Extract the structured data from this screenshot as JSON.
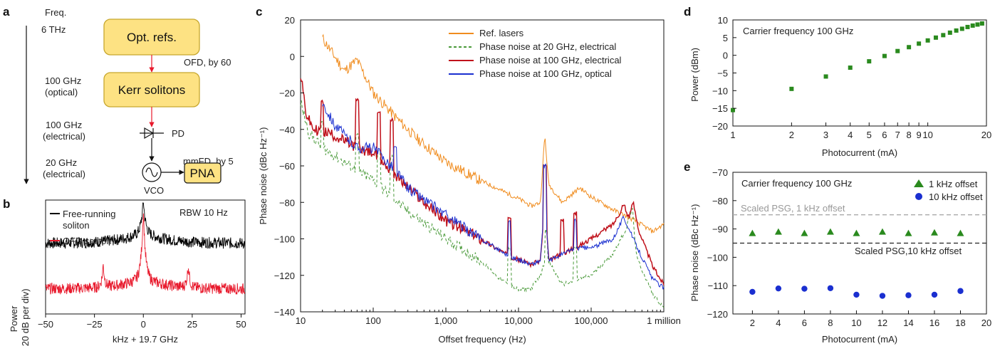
{
  "panels": {
    "a": "a",
    "b": "b",
    "c": "c",
    "d": "d",
    "e": "e"
  },
  "diagram": {
    "freq_header": "Freq.",
    "levels": [
      "6 THz",
      "100 GHz\n(optical)",
      "100 GHz\n(electrical)",
      "20 GHz\n(electrical)"
    ],
    "box_refs": "Opt. refs.",
    "box_kerr": "Kerr solitons",
    "box_pna": "PNA",
    "ofd_label": "OFD, by 60",
    "pd_label": "PD",
    "mmfd_label": "mmFD, by 5",
    "vco_label": "VCO",
    "colors": {
      "box_fill": "#fde283",
      "box_stroke": "#c7a72e",
      "arrow_red": "#e8192c"
    }
  },
  "chart_data": [
    {
      "id": "b",
      "type": "line",
      "xlabel": "kHz + 19.7 GHz",
      "ylabel": [
        "Power",
        "(20 dB per div)"
      ],
      "xlim": [
        -50,
        52
      ],
      "xticks": [
        -50,
        -25,
        0,
        25,
        50
      ],
      "xtick_labels": [
        "−50",
        "−25",
        "0",
        "25",
        "50"
      ],
      "annotation": "RBW 10 Hz",
      "series": [
        {
          "name": "Free-running\nsoliton",
          "color": "#000000",
          "baseline": 0.62,
          "sideband_peaks": []
        },
        {
          "name": "OFD soliton",
          "color": "#e8192c",
          "baseline": 0.22,
          "sideband_peaks": [
            -20.5,
            23
          ]
        }
      ]
    },
    {
      "id": "c",
      "type": "line",
      "xlabel": "Offset frequency (Hz)",
      "ylabel": "Phase noise (dBc Hz⁻¹)",
      "xscale": "log",
      "xlim": [
        10,
        1000000
      ],
      "ylim": [
        -140,
        20
      ],
      "xticks": [
        10,
        100,
        1000,
        10000,
        100000,
        1000000
      ],
      "xtick_labels": [
        "10",
        "100",
        "1,000",
        "10,000",
        "100,000",
        "1 million"
      ],
      "yticks": [
        -140,
        -120,
        -100,
        -80,
        -60,
        -40,
        -20,
        0,
        20
      ],
      "ytick_labels": [
        "−140",
        "−120",
        "−100",
        "−80",
        "−60",
        "−40",
        "−20",
        "0",
        "20"
      ],
      "series": [
        {
          "name": "Ref. lasers",
          "color": "#f08c1e",
          "dash": "",
          "points": [
            [
              20,
              10
            ],
            [
              40,
              -8
            ],
            [
              60,
              -2
            ],
            [
              100,
              -20
            ],
            [
              200,
              -33
            ],
            [
              400,
              -45
            ],
            [
              1000,
              -58
            ],
            [
              3000,
              -68
            ],
            [
              10000,
              -78
            ],
            [
              15000,
              -82
            ],
            [
              20000,
              -80
            ],
            [
              23000,
              -43
            ],
            [
              26000,
              -70
            ],
            [
              40000,
              -80
            ],
            [
              70000,
              -72
            ],
            [
              100000,
              -77
            ],
            [
              200000,
              -84
            ],
            [
              400000,
              -90
            ],
            [
              700000,
              -96
            ],
            [
              1000000,
              -92
            ]
          ],
          "spikes": []
        },
        {
          "name": "Phase noise at 20 GHz, electrical",
          "color": "#4a9a3a",
          "dash": "4,3",
          "points": [
            [
              10,
              -25
            ],
            [
              13,
              -42
            ],
            [
              20,
              -50
            ],
            [
              40,
              -58
            ],
            [
              100,
              -68
            ],
            [
              300,
              -85
            ],
            [
              1000,
              -100
            ],
            [
              3000,
              -112
            ],
            [
              6000,
              -123
            ],
            [
              10000,
              -128
            ],
            [
              15000,
              -127
            ],
            [
              20000,
              -120
            ],
            [
              24000,
              -110
            ],
            [
              40000,
              -125
            ],
            [
              100000,
              -120
            ],
            [
              200000,
              -108
            ],
            [
              300000,
              -95
            ],
            [
              370000,
              -83
            ],
            [
              420000,
              -110
            ],
            [
              700000,
              -130
            ],
            [
              1000000,
              -138
            ]
          ],
          "spikes": [
            [
              20,
              -36
            ],
            [
              60,
              -43
            ],
            [
              120,
              -52
            ],
            [
              180,
              -55
            ],
            [
              7500,
              -105
            ],
            [
              24000,
              -95
            ],
            [
              60000,
              -105
            ]
          ]
        },
        {
          "name": "Phase noise at 100 GHz, electrical",
          "color": "#c0111b",
          "dash": "",
          "points": [
            [
              10,
              -10
            ],
            [
              12,
              -32
            ],
            [
              15,
              -40
            ],
            [
              25,
              -42
            ],
            [
              60,
              -50
            ],
            [
              100,
              -53
            ],
            [
              200,
              -65
            ],
            [
              500,
              -80
            ],
            [
              1000,
              -90
            ],
            [
              3000,
              -100
            ],
            [
              8000,
              -110
            ],
            [
              15000,
              -114
            ],
            [
              20000,
              -112
            ],
            [
              23000,
              -80
            ],
            [
              26000,
              -112
            ],
            [
              40000,
              -108
            ],
            [
              60000,
              -105
            ],
            [
              100000,
              -100
            ],
            [
              200000,
              -92
            ],
            [
              280000,
              -82
            ],
            [
              330000,
              -88
            ],
            [
              380000,
              -80
            ],
            [
              450000,
              -95
            ],
            [
              700000,
              -115
            ],
            [
              1000000,
              -125
            ]
          ],
          "spikes": [
            [
              20,
              -25
            ],
            [
              60,
              -24
            ],
            [
              120,
              -30
            ],
            [
              180,
              -35
            ],
            [
              7500,
              -88
            ],
            [
              23000,
              -60
            ],
            [
              40000,
              -90
            ],
            [
              60000,
              -86
            ],
            [
              280000,
              -82
            ]
          ]
        },
        {
          "name": "Phase noise at 100 GHz, optical",
          "color": "#1a2fd0",
          "dash": "",
          "points": [
            [
              20,
              -25
            ],
            [
              30,
              -38
            ],
            [
              60,
              -50
            ],
            [
              100,
              -50
            ],
            [
              200,
              -62
            ],
            [
              300,
              -72
            ],
            [
              1000,
              -87
            ],
            [
              3000,
              -100
            ],
            [
              8000,
              -110
            ],
            [
              15000,
              -114
            ],
            [
              20000,
              -112
            ],
            [
              23000,
              -78
            ],
            [
              26000,
              -112
            ],
            [
              60000,
              -105
            ],
            [
              100000,
              -105
            ],
            [
              200000,
              -100
            ],
            [
              280000,
              -88
            ],
            [
              400000,
              -102
            ],
            [
              700000,
              -122
            ],
            [
              1000000,
              -127
            ]
          ],
          "spikes": [
            [
              200,
              -50
            ],
            [
              7500,
              -90
            ],
            [
              23000,
              -60
            ],
            [
              60000,
              -90
            ]
          ]
        }
      ]
    },
    {
      "id": "d",
      "type": "scatter",
      "xlabel": "Photocurrent (mA)",
      "ylabel": "Power (dBm)",
      "xscale": "log",
      "xlim": [
        1,
        20
      ],
      "ylim": [
        -20,
        10
      ],
      "yticks": [
        -20,
        -15,
        -10,
        -5,
        0,
        5,
        10
      ],
      "ytick_labels": [
        "−20",
        "−15",
        "−10",
        "−5",
        "0",
        "5",
        "10"
      ],
      "xticks": [
        1,
        2,
        3,
        4,
        5,
        6,
        7,
        8,
        9,
        10,
        20
      ],
      "xtick_labels": [
        "1",
        "2",
        "3",
        "4",
        "5",
        "6",
        "7",
        "8",
        "9",
        "10",
        "20"
      ],
      "annotation": "Carrier frequency 100 GHz",
      "series": [
        {
          "color": "#2a8a1e",
          "x": [
            1,
            2,
            3,
            4,
            5,
            6,
            7,
            8,
            9,
            10,
            11,
            12,
            13,
            14,
            15,
            16,
            17,
            18,
            19
          ],
          "y": [
            -15.5,
            -9.5,
            -6,
            -3.5,
            -1.7,
            -0.2,
            1.2,
            2.3,
            3.3,
            4.2,
            5.0,
            5.7,
            6.4,
            7.0,
            7.5,
            8.0,
            8.4,
            8.7,
            9.0
          ]
        }
      ]
    },
    {
      "id": "e",
      "type": "scatter",
      "xlabel": "Photocurrent (mA)",
      "ylabel": "Phase noise (dBc Hz⁻¹)",
      "xlim": [
        0.5,
        20
      ],
      "ylim": [
        -120,
        -70
      ],
      "yticks": [
        -120,
        -110,
        -100,
        -90,
        -80,
        -70
      ],
      "ytick_labels": [
        "−120",
        "−110",
        "−100",
        "−90",
        "−80",
        "−70"
      ],
      "xticks": [
        2,
        4,
        6,
        8,
        10,
        12,
        14,
        16,
        18,
        20
      ],
      "xtick_labels": [
        "2",
        "4",
        "6",
        "8",
        "10",
        "12",
        "14",
        "16",
        "18",
        "20"
      ],
      "annotation": "Carrier frequency 100 GHz",
      "series": [
        {
          "name": "1 kHz offset",
          "color": "#2a8a1e",
          "marker": "triangle",
          "x": [
            2,
            4,
            6,
            8,
            10,
            12,
            14,
            16,
            18
          ],
          "y": [
            -91.5,
            -91,
            -91.5,
            -91,
            -91.5,
            -91,
            -91.5,
            -91.3,
            -91.5
          ]
        },
        {
          "name": "10 kHz offset",
          "color": "#1a2fd0",
          "marker": "circle",
          "x": [
            2,
            4,
            6,
            8,
            10,
            12,
            14,
            16,
            18
          ],
          "y": [
            -112.2,
            -111,
            -111.1,
            -110.9,
            -113.2,
            -113.6,
            -113.4,
            -113.2,
            -111.9
          ]
        }
      ],
      "reference_lines": [
        {
          "label": "Scaled PSG, 1 kHz offset",
          "y": -85,
          "color": "#aaaaaa"
        },
        {
          "label": "Scaled PSG,10 kHz offset",
          "y": -95,
          "color": "#222222"
        }
      ]
    }
  ]
}
